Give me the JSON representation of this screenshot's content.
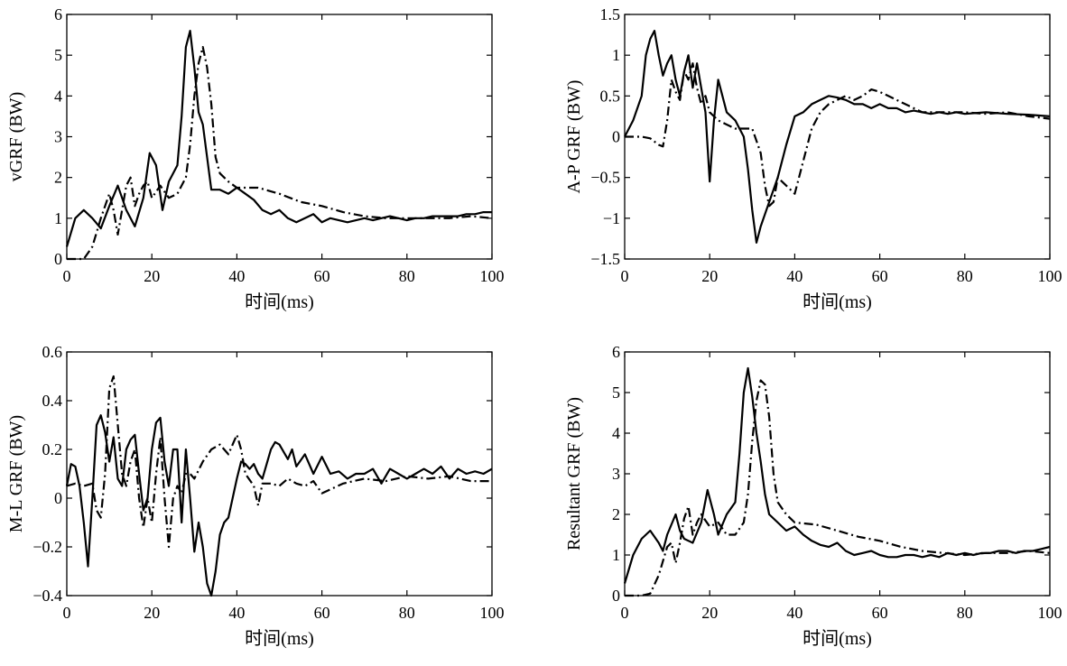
{
  "chart_data": [
    {
      "type": "line",
      "ylabel": "vGRF (BW)",
      "xlabel": "时间(ms)",
      "xlim": [
        0,
        100
      ],
      "ylim": [
        0,
        6
      ],
      "xticks": [
        "0",
        "20",
        "40",
        "60",
        "80",
        "100"
      ],
      "yticks": [
        "0",
        "1",
        "2",
        "3",
        "4",
        "5",
        "6"
      ],
      "series": [
        {
          "style": "solid",
          "x": [
            0,
            2,
            4,
            6,
            8,
            10,
            12,
            14,
            16,
            18,
            19.5,
            21,
            22.5,
            24,
            26,
            27,
            28,
            29,
            30,
            31,
            32,
            33,
            34,
            36,
            38,
            40,
            42,
            44,
            46,
            48,
            50,
            52,
            54,
            56,
            58,
            60,
            62,
            64,
            66,
            68,
            70,
            72,
            74,
            76,
            78,
            80,
            82,
            84,
            86,
            88,
            90,
            92,
            94,
            96,
            98,
            100
          ],
          "y": [
            0.3,
            1.0,
            1.2,
            1.0,
            0.75,
            1.3,
            1.8,
            1.2,
            0.8,
            1.5,
            2.6,
            2.3,
            1.2,
            1.9,
            2.3,
            3.5,
            5.2,
            5.6,
            4.7,
            3.6,
            3.3,
            2.5,
            1.7,
            1.7,
            1.6,
            1.75,
            1.6,
            1.45,
            1.2,
            1.1,
            1.2,
            1.0,
            0.9,
            1.0,
            1.1,
            0.9,
            1.0,
            0.95,
            0.9,
            0.95,
            1.0,
            0.95,
            1.0,
            1.05,
            1.0,
            0.95,
            1.0,
            1.0,
            1.05,
            1.05,
            1.05,
            1.05,
            1.1,
            1.1,
            1.15,
            1.15
          ]
        },
        {
          "style": "dashdot",
          "x": [
            0,
            4,
            6,
            8,
            10,
            11,
            12,
            13,
            14,
            15,
            16,
            17,
            18,
            19,
            20,
            22,
            24,
            26,
            28,
            29,
            30,
            31,
            32,
            33,
            34,
            35,
            36,
            38,
            40,
            45,
            50,
            55,
            60,
            65,
            70,
            75,
            80,
            85,
            90,
            95,
            100
          ],
          "y": [
            0,
            0,
            0.3,
            1.0,
            1.6,
            1.2,
            0.6,
            1.2,
            1.8,
            2.0,
            1.3,
            1.6,
            1.8,
            1.9,
            1.5,
            1.8,
            1.5,
            1.6,
            2.0,
            2.8,
            4.0,
            4.8,
            5.2,
            4.7,
            3.8,
            2.5,
            2.1,
            1.9,
            1.75,
            1.75,
            1.6,
            1.4,
            1.3,
            1.15,
            1.05,
            1.0,
            1.0,
            1.0,
            1.0,
            1.05,
            1.0
          ]
        }
      ]
    },
    {
      "type": "line",
      "ylabel": "A-P GRF (BW)",
      "xlabel": "时间(ms)",
      "xlim": [
        0,
        100
      ],
      "ylim": [
        -1.5,
        1.5
      ],
      "xticks": [
        "0",
        "20",
        "40",
        "60",
        "80",
        "100"
      ],
      "yticks": [
        "−1.5",
        "−1",
        "−0.5",
        "0",
        "0.5",
        "1",
        "1.5"
      ],
      "yticks_v": [
        -1.5,
        -1,
        -0.5,
        0,
        0.5,
        1,
        1.5
      ],
      "series": [
        {
          "style": "solid",
          "x": [
            0,
            2,
            4,
            5,
            6,
            7,
            8,
            9,
            10,
            11,
            12,
            13,
            14,
            15,
            16,
            17,
            18,
            19,
            20,
            21,
            22,
            23,
            24,
            26,
            28,
            29,
            30,
            31,
            32,
            34,
            36,
            38,
            40,
            42,
            44,
            46,
            48,
            50,
            52,
            54,
            56,
            58,
            60,
            62,
            64,
            66,
            68,
            70,
            72,
            74,
            76,
            78,
            80,
            85,
            90,
            95,
            100
          ],
          "y": [
            0,
            0.2,
            0.5,
            1.0,
            1.2,
            1.3,
            1.0,
            0.75,
            0.9,
            1.0,
            0.7,
            0.5,
            0.8,
            1.0,
            0.6,
            0.9,
            0.6,
            0.3,
            -0.55,
            0.2,
            0.7,
            0.5,
            0.3,
            0.2,
            0.0,
            -0.4,
            -0.9,
            -1.3,
            -1.1,
            -0.8,
            -0.5,
            -0.1,
            0.25,
            0.3,
            0.4,
            0.45,
            0.5,
            0.48,
            0.45,
            0.4,
            0.4,
            0.35,
            0.4,
            0.35,
            0.35,
            0.3,
            0.32,
            0.3,
            0.28,
            0.3,
            0.28,
            0.3,
            0.28,
            0.3,
            0.28,
            0.27,
            0.25
          ]
        },
        {
          "style": "dashdot",
          "x": [
            0,
            4,
            6,
            8,
            9,
            10,
            11,
            12,
            13,
            14,
            15,
            16,
            17,
            18,
            19,
            20,
            22,
            24,
            26,
            28,
            30,
            32,
            33,
            34,
            35,
            36,
            37,
            38,
            40,
            42,
            44,
            46,
            48,
            50,
            52,
            54,
            56,
            58,
            60,
            62,
            64,
            66,
            68,
            70,
            75,
            80,
            85,
            90,
            95,
            100
          ],
          "y": [
            0,
            0,
            -0.02,
            -0.1,
            -0.12,
            0.2,
            0.7,
            0.55,
            0.45,
            0.8,
            0.7,
            0.9,
            0.6,
            0.4,
            0.5,
            0.3,
            0.2,
            0.15,
            0.1,
            0.1,
            0.1,
            -0.2,
            -0.6,
            -0.85,
            -0.8,
            -0.5,
            -0.55,
            -0.6,
            -0.7,
            -0.3,
            0.1,
            0.3,
            0.4,
            0.45,
            0.5,
            0.45,
            0.5,
            0.58,
            0.55,
            0.5,
            0.45,
            0.4,
            0.35,
            0.3,
            0.3,
            0.3,
            0.28,
            0.3,
            0.25,
            0.22
          ]
        }
      ]
    },
    {
      "type": "line",
      "ylabel": "M-L GRF (BW)",
      "xlabel": "时间(ms)",
      "xlim": [
        0,
        100
      ],
      "ylim": [
        -0.4,
        0.6
      ],
      "xticks": [
        "0",
        "20",
        "40",
        "60",
        "80",
        "100"
      ],
      "yticks": [
        "−0.4",
        "−0.2",
        "0",
        "0.2",
        "0.4",
        "0.6"
      ],
      "yticks_v": [
        -0.4,
        -0.2,
        0,
        0.2,
        0.4,
        0.6
      ],
      "series": [
        {
          "style": "solid",
          "x": [
            0,
            1,
            2,
            3,
            4,
            5,
            6,
            7,
            8,
            9,
            10,
            11,
            12,
            13,
            14,
            15,
            16,
            17,
            18,
            19,
            20,
            21,
            22,
            23,
            24,
            25,
            26,
            27,
            28,
            29,
            30,
            31,
            32,
            33,
            34,
            35,
            36,
            37,
            38,
            39,
            40,
            41,
            42,
            43,
            44,
            45,
            46,
            48,
            49,
            50,
            52,
            53,
            54,
            56,
            58,
            60,
            62,
            64,
            66,
            68,
            70,
            72,
            74,
            76,
            78,
            80,
            82,
            84,
            86,
            88,
            90,
            92,
            94,
            96,
            98,
            100
          ],
          "y": [
            0.05,
            0.14,
            0.13,
            0.05,
            -0.1,
            -0.28,
            0.0,
            0.3,
            0.34,
            0.27,
            0.15,
            0.25,
            0.08,
            0.05,
            0.2,
            0.24,
            0.26,
            0.1,
            -0.05,
            0.0,
            0.2,
            0.31,
            0.33,
            0.15,
            0.05,
            0.2,
            0.2,
            -0.1,
            0.2,
            0.0,
            -0.22,
            -0.1,
            -0.2,
            -0.35,
            -0.4,
            -0.3,
            -0.15,
            -0.1,
            -0.08,
            0.0,
            0.08,
            0.15,
            0.14,
            0.12,
            0.14,
            0.1,
            0.08,
            0.2,
            0.23,
            0.22,
            0.16,
            0.2,
            0.13,
            0.18,
            0.1,
            0.17,
            0.1,
            0.11,
            0.08,
            0.1,
            0.1,
            0.12,
            0.06,
            0.12,
            0.1,
            0.08,
            0.1,
            0.12,
            0.1,
            0.13,
            0.08,
            0.12,
            0.1,
            0.11,
            0.1,
            0.12
          ]
        },
        {
          "style": "dashdot",
          "x": [
            0,
            2,
            4,
            6,
            7,
            8,
            9,
            10,
            11,
            12,
            13,
            14,
            15,
            16,
            17,
            18,
            19,
            20,
            21,
            22,
            23,
            24,
            25,
            26,
            27,
            28,
            29,
            30,
            32,
            34,
            36,
            38,
            39,
            40,
            41,
            42,
            44,
            45,
            46,
            48,
            50,
            52,
            54,
            56,
            58,
            60,
            65,
            70,
            75,
            80,
            85,
            90,
            95,
            100
          ],
          "y": [
            0.05,
            0.06,
            0.05,
            0.06,
            -0.05,
            -0.08,
            0.1,
            0.45,
            0.5,
            0.3,
            0.1,
            0.05,
            0.15,
            0.2,
            0.0,
            -0.12,
            0.0,
            -0.1,
            0.1,
            0.25,
            0.0,
            -0.2,
            0.0,
            0.05,
            0.02,
            0.1,
            0.1,
            0.08,
            0.15,
            0.2,
            0.22,
            0.18,
            0.22,
            0.26,
            0.2,
            0.1,
            0.05,
            -0.03,
            0.06,
            0.06,
            0.05,
            0.08,
            0.06,
            0.05,
            0.07,
            0.02,
            0.06,
            0.08,
            0.07,
            0.09,
            0.08,
            0.09,
            0.07,
            0.07
          ]
        }
      ]
    },
    {
      "type": "line",
      "ylabel": "Resultant GRF (BW)",
      "xlabel": "时间(ms)",
      "xlim": [
        0,
        100
      ],
      "ylim": [
        0,
        6
      ],
      "xticks": [
        "0",
        "20",
        "40",
        "60",
        "80",
        "100"
      ],
      "yticks": [
        "0",
        "1",
        "2",
        "3",
        "4",
        "5",
        "6"
      ],
      "series": [
        {
          "style": "solid",
          "x": [
            0,
            2,
            4,
            6,
            8,
            9,
            10,
            12,
            13,
            14,
            16,
            18,
            19.5,
            21,
            22,
            24,
            26,
            27,
            28,
            29,
            30,
            31,
            32,
            33,
            34,
            36,
            38,
            40,
            42,
            44,
            46,
            48,
            50,
            52,
            54,
            56,
            58,
            60,
            62,
            64,
            66,
            68,
            70,
            72,
            74,
            76,
            78,
            80,
            82,
            84,
            86,
            88,
            90,
            92,
            94,
            96,
            98,
            100
          ],
          "y": [
            0.3,
            1.0,
            1.4,
            1.6,
            1.3,
            1.1,
            1.5,
            2.0,
            1.6,
            1.4,
            1.3,
            1.8,
            2.6,
            2.0,
            1.5,
            2.0,
            2.3,
            3.5,
            5.0,
            5.6,
            4.9,
            4.0,
            3.3,
            2.5,
            2.0,
            1.8,
            1.6,
            1.7,
            1.5,
            1.35,
            1.25,
            1.2,
            1.3,
            1.1,
            1.0,
            1.05,
            1.1,
            1.0,
            0.95,
            0.95,
            1.0,
            1.0,
            0.95,
            1.0,
            0.95,
            1.05,
            1.0,
            1.05,
            1.0,
            1.05,
            1.05,
            1.1,
            1.1,
            1.05,
            1.1,
            1.1,
            1.15,
            1.2
          ]
        },
        {
          "style": "dashdot",
          "x": [
            0,
            4,
            6,
            8,
            10,
            11,
            12,
            13,
            14,
            15,
            16,
            17,
            18,
            20,
            22,
            24,
            26,
            28,
            29,
            30,
            31,
            32,
            33,
            34,
            35,
            36,
            38,
            40,
            45,
            50,
            55,
            60,
            65,
            70,
            75,
            80,
            85,
            90,
            95,
            100
          ],
          "y": [
            0,
            0,
            0.05,
            0.5,
            1.2,
            1.3,
            0.8,
            1.3,
            1.9,
            2.2,
            1.5,
            1.8,
            2.0,
            1.7,
            1.8,
            1.5,
            1.5,
            1.8,
            2.5,
            3.8,
            4.8,
            5.3,
            5.2,
            4.4,
            3.0,
            2.3,
            2.0,
            1.8,
            1.75,
            1.6,
            1.45,
            1.35,
            1.2,
            1.1,
            1.05,
            1.0,
            1.05,
            1.05,
            1.1,
            1.05
          ]
        }
      ]
    }
  ]
}
